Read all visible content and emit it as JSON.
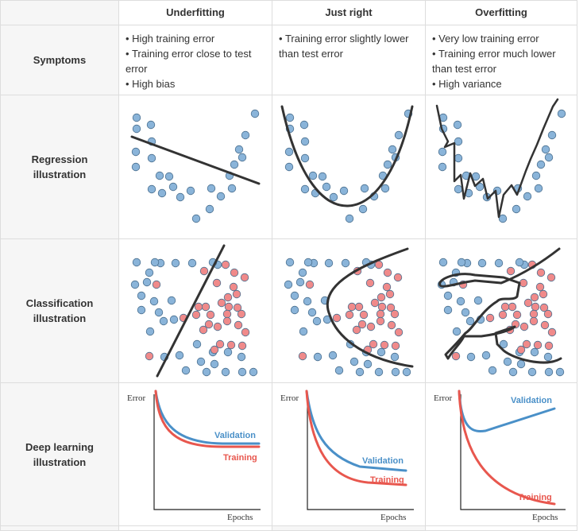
{
  "columns": [
    "Underfitting",
    "Just right",
    "Overfitting"
  ],
  "rows": {
    "symptoms": [
      "Symptoms"
    ],
    "regression": [
      "Regression",
      "illustration"
    ],
    "classification": [
      "Classification",
      "illustration"
    ],
    "deep_learning": [
      "Deep learning",
      "illustration"
    ]
  },
  "symptoms": {
    "underfitting": [
      "High training error",
      "Training error close to test error",
      "High bias"
    ],
    "just_right": [
      "Training error slightly lower than test error"
    ],
    "overfitting": [
      "Very low training error",
      "Training error much lower than test error",
      "High variance"
    ]
  },
  "deep_learning": {
    "y_label": "Error",
    "x_label": "Epochs",
    "validation_label": "Validation",
    "training_label": "Training",
    "validation_color": "#4a90c8",
    "training_color": "#e8574e"
  },
  "colors": {
    "blue_point": "#8ab4d9",
    "red_point": "#f08a8a",
    "line": "#333333"
  }
}
